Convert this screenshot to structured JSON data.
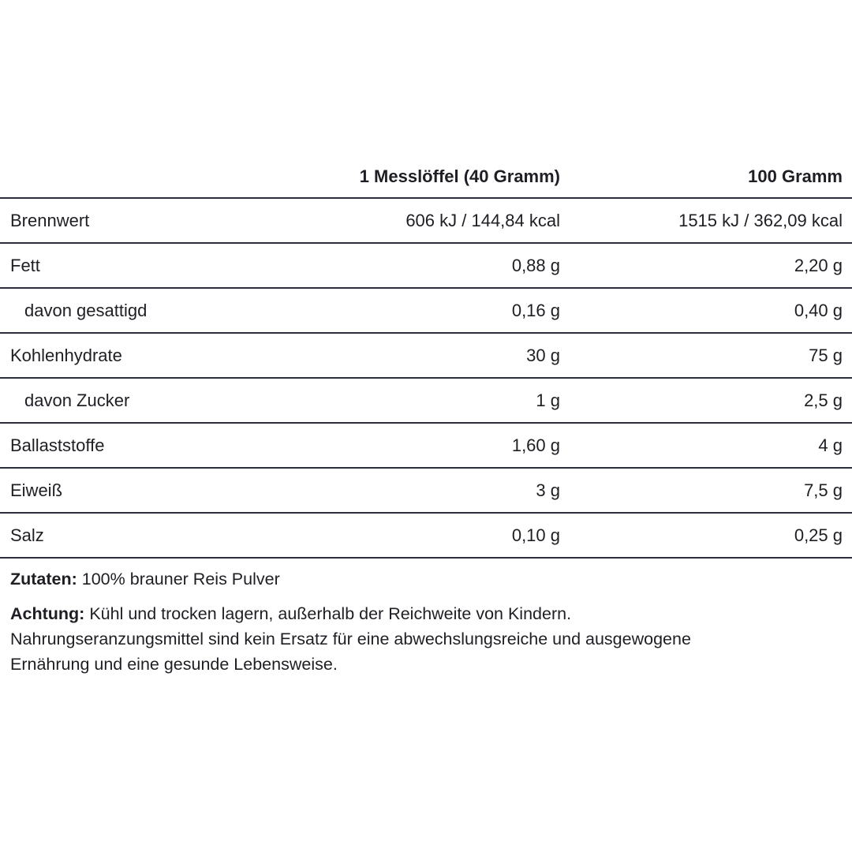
{
  "table": {
    "headers": [
      "",
      "1 Messlöffel (40 Gramm)",
      "100 Gramm"
    ],
    "rows": [
      {
        "label": "Brennwert",
        "per_serving": "606 kJ / 144,84 kcal",
        "per_100g": "1515 kJ / 362,09 kcal",
        "indent": false
      },
      {
        "label": "Fett",
        "per_serving": "0,88 g",
        "per_100g": "2,20 g",
        "indent": false
      },
      {
        "label": "davon gesattigd",
        "per_serving": "0,16 g",
        "per_100g": "0,40 g",
        "indent": true
      },
      {
        "label": "Kohlenhydrate",
        "per_serving": "30 g",
        "per_100g": "75 g",
        "indent": false
      },
      {
        "label": "davon Zucker",
        "per_serving": "1 g",
        "per_100g": "2,5 g",
        "indent": true
      },
      {
        "label": "Ballaststoffe",
        "per_serving": "1,60 g",
        "per_100g": "4 g",
        "indent": false
      },
      {
        "label": "Eiweiß",
        "per_serving": "3 g",
        "per_100g": "7,5 g",
        "indent": false
      },
      {
        "label": "Salz",
        "per_serving": "0,10 g",
        "per_100g": "0,25 g",
        "indent": false
      }
    ]
  },
  "ingredients": {
    "label": "Zutaten:",
    "text": " 100% brauner Reis Pulver"
  },
  "warning": {
    "label": "Achtung:",
    "lines": [
      " Kühl und trocken lagern, außerhalb der Reichweite von Kindern.",
      "Nahrungseranzungsmittel sind kein Ersatz für eine abwechslungsreiche und ausgewogene",
      "Ernährung und eine gesunde Lebensweise."
    ]
  }
}
